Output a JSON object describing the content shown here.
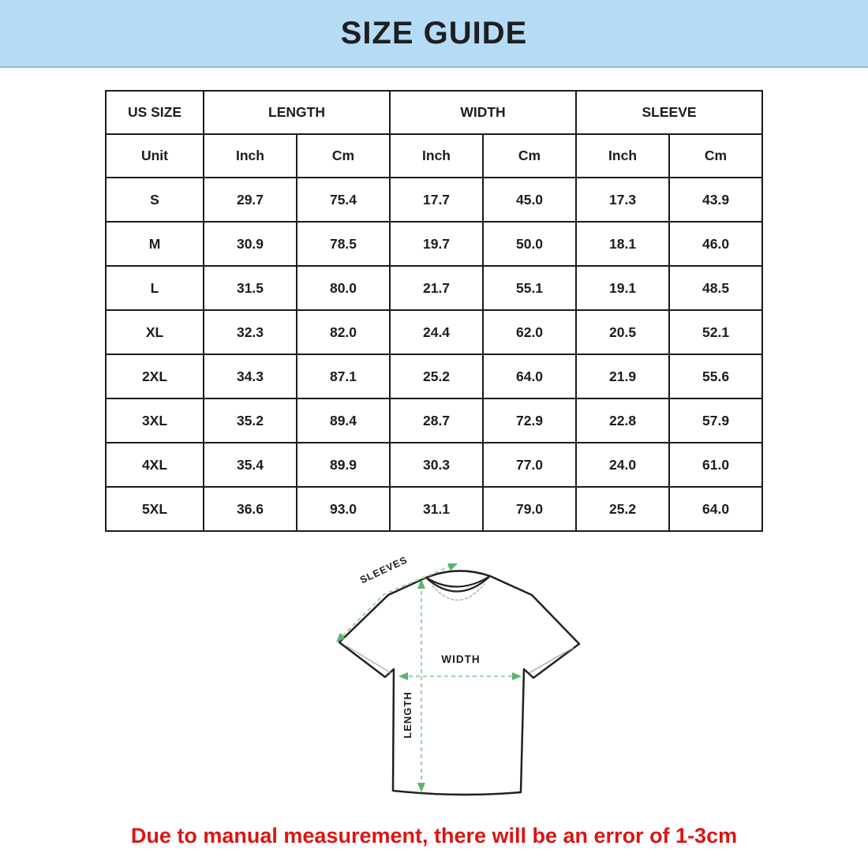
{
  "banner": {
    "title": "SIZE GUIDE"
  },
  "size_table": {
    "column_groups": [
      {
        "label": "US SIZE",
        "span": 1
      },
      {
        "label": "LENGTH",
        "span": 2
      },
      {
        "label": "WIDTH",
        "span": 2
      },
      {
        "label": "SLEEVE",
        "span": 2
      }
    ],
    "unit_header": [
      "Unit",
      "Inch",
      "Cm",
      "Inch",
      "Cm",
      "Inch",
      "Cm"
    ],
    "rows": [
      {
        "size": "S",
        "values": [
          "29.7",
          "75.4",
          "17.7",
          "45.0",
          "17.3",
          "43.9"
        ]
      },
      {
        "size": "M",
        "values": [
          "30.9",
          "78.5",
          "19.7",
          "50.0",
          "18.1",
          "46.0"
        ]
      },
      {
        "size": "L",
        "values": [
          "31.5",
          "80.0",
          "21.7",
          "55.1",
          "19.1",
          "48.5"
        ]
      },
      {
        "size": "XL",
        "values": [
          "32.3",
          "82.0",
          "24.4",
          "62.0",
          "20.5",
          "52.1"
        ]
      },
      {
        "size": "2XL",
        "values": [
          "34.3",
          "87.1",
          "25.2",
          "64.0",
          "21.9",
          "55.6"
        ]
      },
      {
        "size": "3XL",
        "values": [
          "35.2",
          "89.4",
          "28.7",
          "72.9",
          "22.8",
          "57.9"
        ]
      },
      {
        "size": "4XL",
        "values": [
          "35.4",
          "89.9",
          "30.3",
          "77.0",
          "24.0",
          "61.0"
        ]
      },
      {
        "size": "5XL",
        "values": [
          "36.6",
          "93.0",
          "31.1",
          "79.0",
          "25.2",
          "64.0"
        ]
      }
    ]
  },
  "diagram": {
    "sleeve_label": "SLEEVES",
    "width_label": "WIDTH",
    "length_label": "LENGTH"
  },
  "footer": {
    "note": "Due to manual measurement, there will be an error of 1-3cm"
  },
  "colors": {
    "banner_bg": "#b5dcf6",
    "cell_shade": "#efefef",
    "table_border": "#1c1c1c",
    "note_red": "#dd1414",
    "arrow_green": "#58b368",
    "arrow_dash_green": "#9fd6aa"
  }
}
